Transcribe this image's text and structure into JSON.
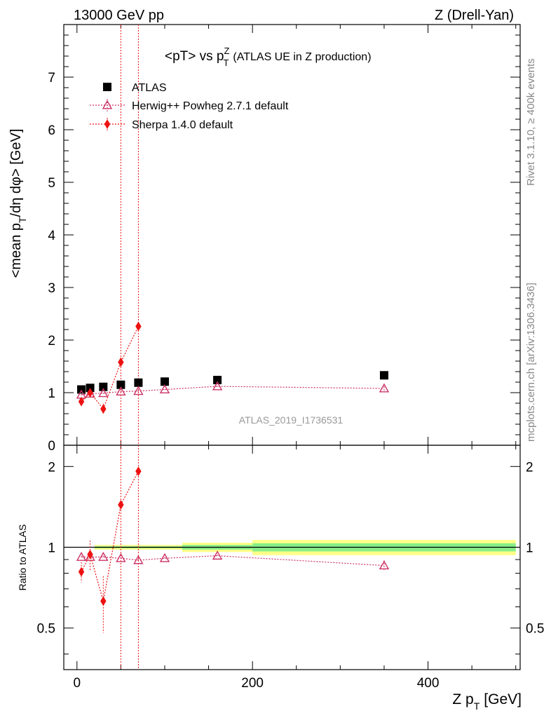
{
  "header": {
    "energy_label": "13000 GeV pp",
    "process_label": "Z (Drell-Yan)"
  },
  "side": {
    "rivet_label": "Rivet 3.1.10, ≥ 400k events",
    "mcplots_label": "mcplots.cern.ch [arXiv:1306.3436]"
  },
  "chart_data": {
    "type": "scatter",
    "title": "<pT> vs pTZ (ATLAS UE in Z production)",
    "title_parts": {
      "main": "<pT> vs p",
      "sup": "Z",
      "sub": "T",
      "rest": "(ATLAS UE in Z production)"
    },
    "analysis_label": "ATLAS_2019_I1736531",
    "xlabel": "Z pT [GeV]",
    "xlabel_parts": {
      "main": "Z p",
      "sub": "T",
      "rest": "[GeV]"
    },
    "ylabel": "<mean pT/dη dφ> [GeV]",
    "ylabel_parts": {
      "main": "<mean p",
      "sub": "T",
      "rest": "/dη dφ> [GeV]"
    },
    "ratio_ylabel": "Ratio to ATLAS",
    "xlim": [
      -15,
      505
    ],
    "ylim": [
      0,
      8
    ],
    "ratio_ylim": [
      0.35,
      2.4
    ],
    "x_ticks": [
      0,
      200,
      400
    ],
    "y_ticks": [
      0,
      1,
      2,
      3,
      4,
      5,
      6,
      7
    ],
    "ratio_ticks": [
      0.5,
      1,
      2
    ],
    "ratio_tick_labels": [
      "0.5",
      "1",
      "2"
    ],
    "vlines": [
      50,
      70
    ],
    "series": [
      {
        "name": "ATLAS",
        "marker": "square",
        "color": "#000000",
        "x": [
          5,
          15,
          30,
          50,
          70,
          100,
          160,
          350
        ],
        "y": [
          1.06,
          1.09,
          1.11,
          1.15,
          1.19,
          1.21,
          1.24,
          1.33
        ],
        "err": [
          0.03,
          0.03,
          0.03,
          0.03,
          0.03,
          0.03,
          0.03,
          0.03
        ]
      },
      {
        "name": "Herwig++ Powheg 2.7.1 default",
        "marker": "triangle-open",
        "color": "#cc3366",
        "x": [
          5,
          15,
          30,
          50,
          70,
          100,
          160,
          350
        ],
        "y": [
          0.96,
          0.98,
          0.99,
          1.02,
          1.03,
          1.06,
          1.12,
          1.08
        ],
        "err": [
          0.01,
          0.01,
          0.01,
          0.01,
          0.01,
          0.01,
          0.01,
          0.04
        ]
      },
      {
        "name": "Sherpa 1.4.0 default",
        "marker": "diamond",
        "color": "#ee1111",
        "x": [
          5,
          15,
          30,
          50,
          70
        ],
        "y": [
          0.83,
          1.0,
          0.69,
          1.58,
          2.26
        ],
        "err": [
          0.06,
          0.08,
          0.1,
          0.02,
          0.02
        ]
      }
    ],
    "ratio_series": [
      {
        "name": "Herwig++ Powheg 2.7.1 default",
        "x": [
          5,
          15,
          30,
          50,
          70,
          100,
          160,
          350
        ],
        "y": [
          0.92,
          0.92,
          0.92,
          0.91,
          0.895,
          0.91,
          0.93,
          0.855
        ],
        "err": [
          0.01,
          0.01,
          0.01,
          0.01,
          0.01,
          0.01,
          0.01,
          0.04
        ]
      },
      {
        "name": "Sherpa 1.4.0 default",
        "x": [
          5,
          15,
          30,
          50,
          70
        ],
        "y": [
          0.81,
          0.94,
          0.63,
          1.44,
          1.92
        ],
        "err": [
          0.07,
          0.12,
          0.15,
          0.01,
          0.01
        ]
      }
    ],
    "ratio_bands": [
      {
        "x0": 20,
        "x1": 120,
        "inner": 0.008,
        "outer": 0.02
      },
      {
        "x0": 120,
        "x1": 200,
        "inner": 0.02,
        "outer": 0.04
      },
      {
        "x0": 200,
        "x1": 500,
        "inner": 0.035,
        "outer": 0.065
      }
    ],
    "band_colors": {
      "inner": "#88ee88",
      "outer": "#ffff88"
    }
  }
}
